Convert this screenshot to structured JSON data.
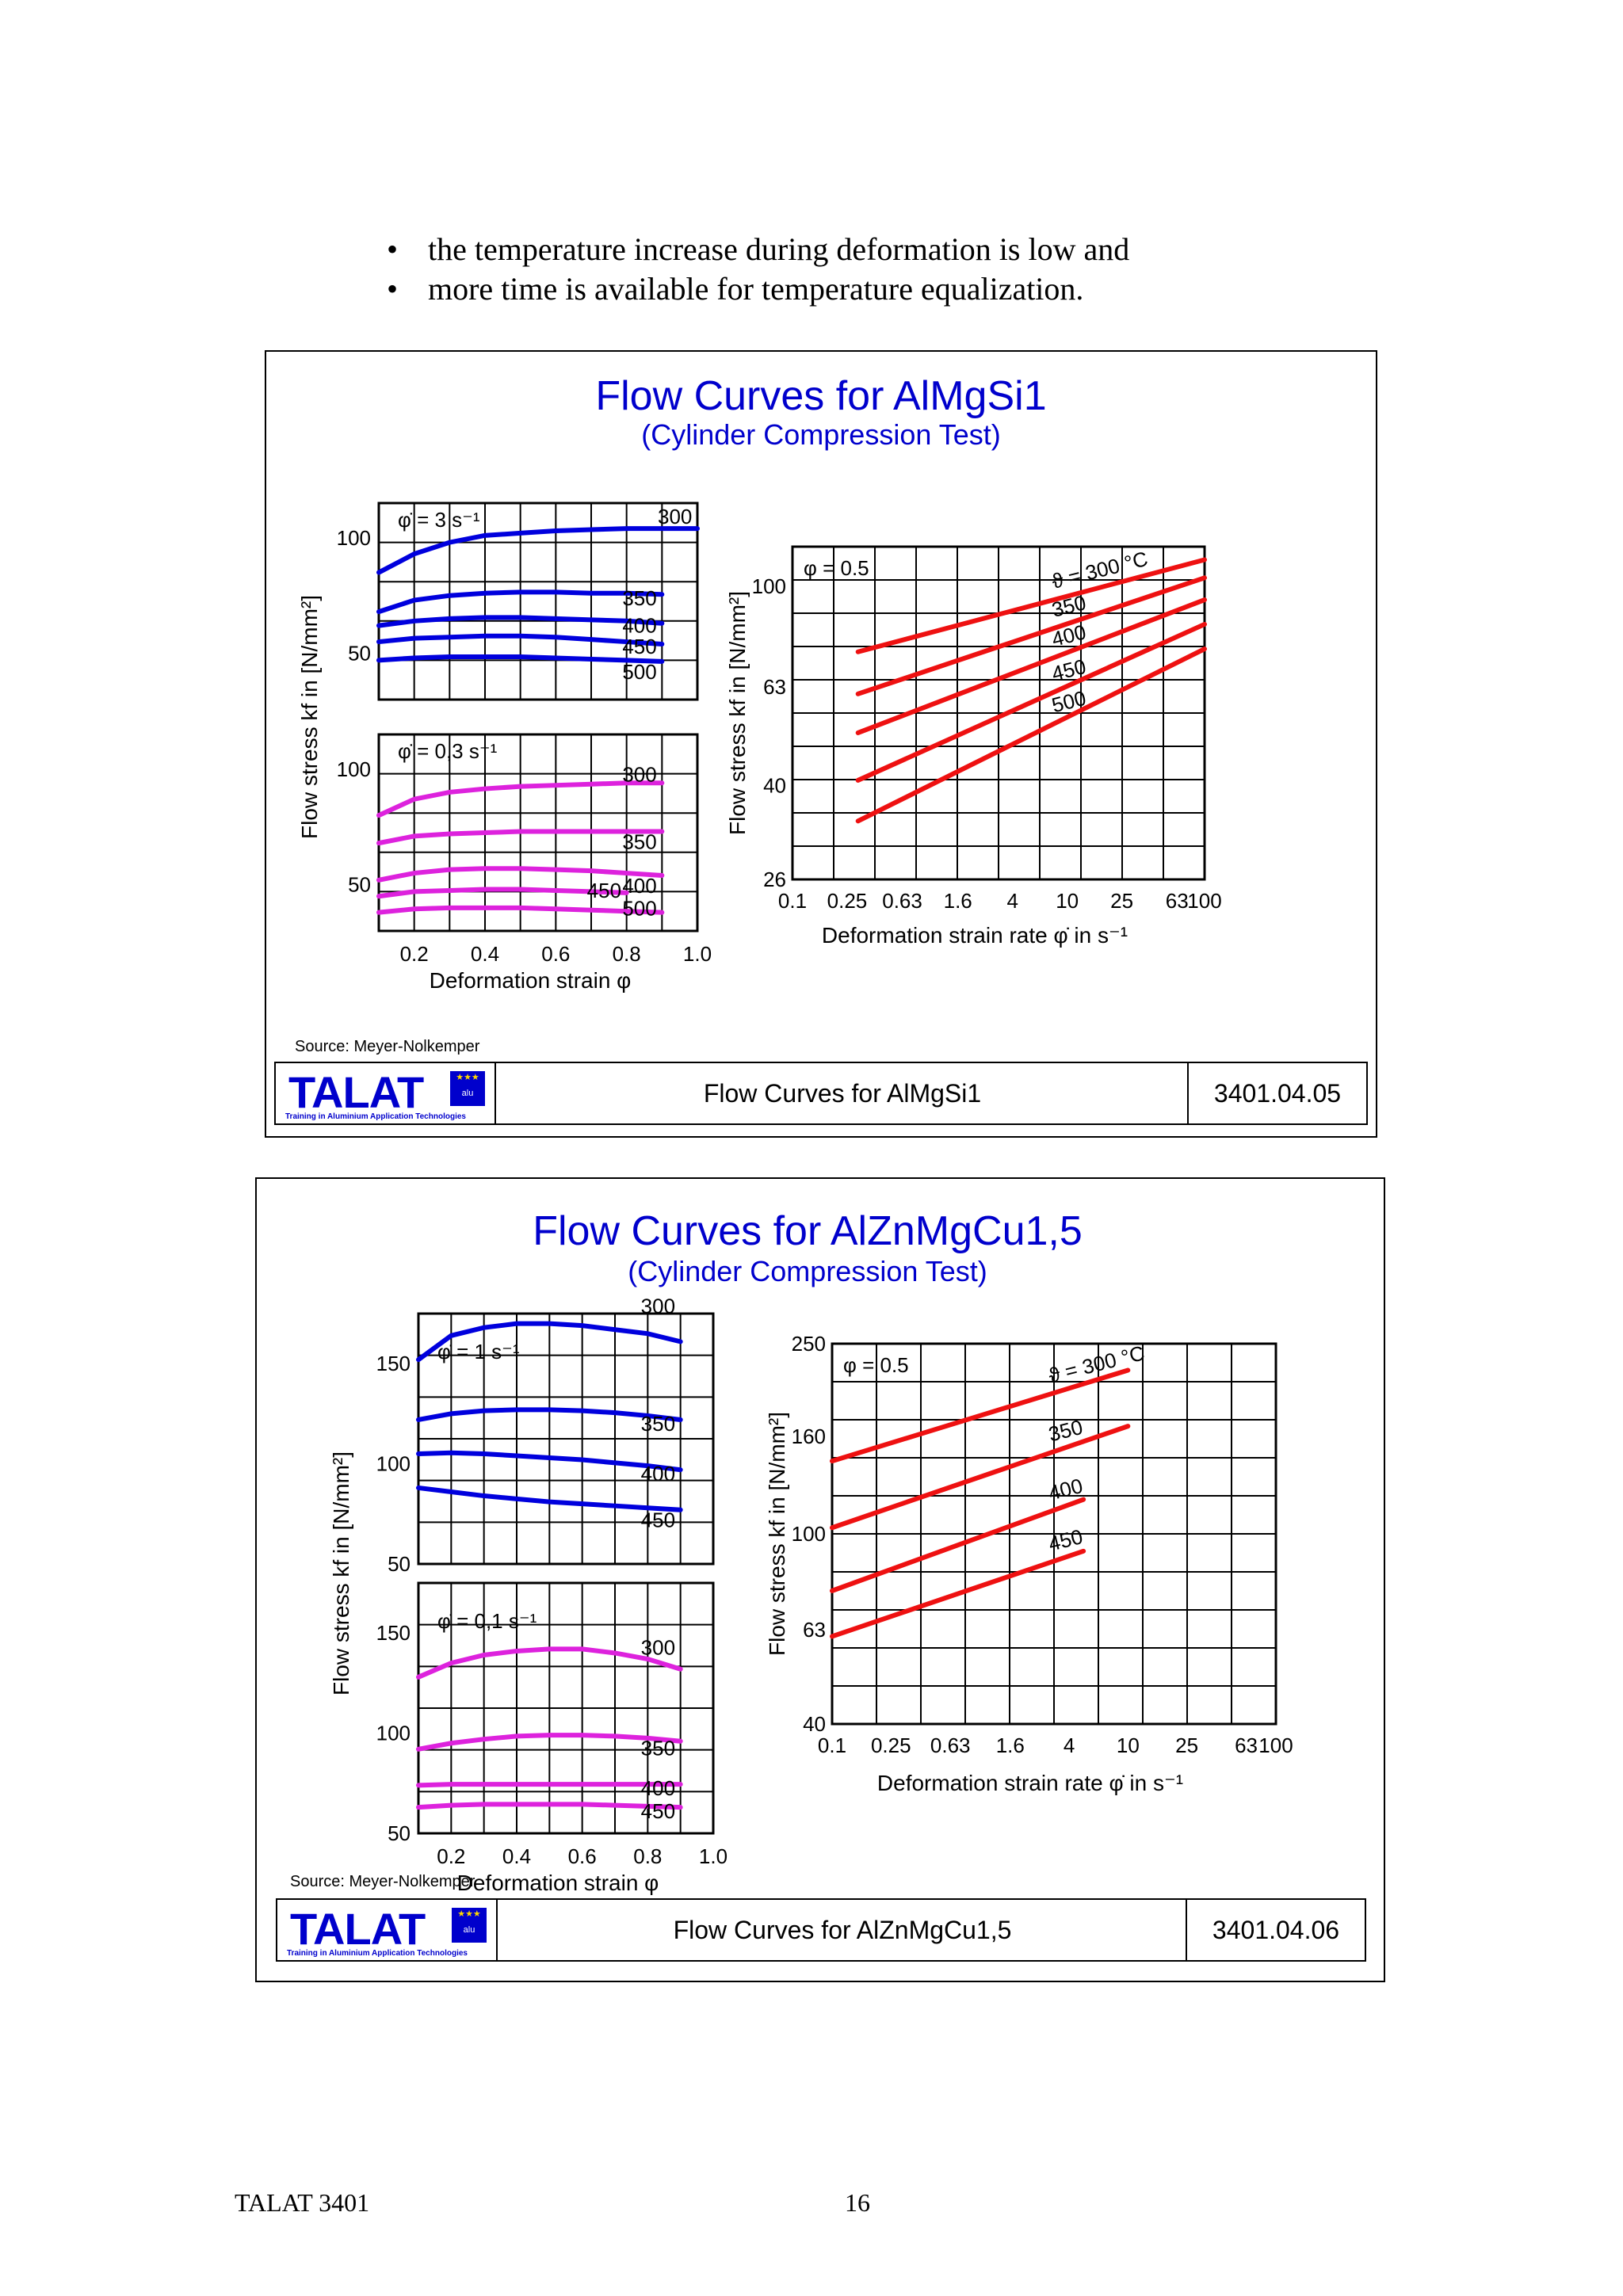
{
  "bullets": [
    "the temperature increase during deformation is low and",
    "more time is available for temperature equalization."
  ],
  "figures": [
    {
      "title": "Flow Curves for AlMgSi1",
      "subtitle": "(Cylinder Compression Test)",
      "source": "Source: Meyer-Nolkemper",
      "footer": {
        "logo": "TALAT",
        "logo_badge": "alu",
        "logo_tagline": "Training in Aluminium Application Technologies",
        "title": "Flow Curves for AlMgSi1",
        "code": "3401.04.05"
      }
    },
    {
      "title": "Flow Curves for AlZnMgCu1,5",
      "subtitle": "(Cylinder Compression Test)",
      "source": "Source: Meyer-Nolkemper",
      "footer": {
        "logo": "TALAT",
        "logo_badge": "alu",
        "logo_tagline": "Training in Aluminium Application Technologies",
        "title": "Flow Curves for AlZnMgCu1,5",
        "code": "3401.04.06"
      }
    }
  ],
  "page_footer": {
    "left": "TALAT 3401",
    "page": "16"
  },
  "chart_data": [
    {
      "id": "f1-strain",
      "type": "line",
      "figure": 1,
      "xlabel": "Deformation strain φ",
      "ylabel": "Flow stress kf in [N/mm²]",
      "xlim": [
        0.1,
        1.0
      ],
      "x_ticks": [
        "0.2",
        "0.4",
        "0.6",
        "0.8",
        "1.0"
      ],
      "grid": true,
      "panels": [
        {
          "label": "φ̇ = 3 s⁻¹",
          "color": "#0000dd",
          "ylim": [
            30,
            115
          ],
          "y_ticks": [
            "100",
            "50"
          ],
          "series": [
            {
              "name": "300",
              "x": [
                0.1,
                0.2,
                0.3,
                0.4,
                0.5,
                0.6,
                0.7,
                0.8,
                0.9,
                1.0
              ],
              "y": [
                85,
                93,
                98,
                101,
                102,
                103,
                103.5,
                104,
                104,
                104
              ]
            },
            {
              "name": "350",
              "x": [
                0.1,
                0.2,
                0.3,
                0.4,
                0.5,
                0.6,
                0.7,
                0.8,
                0.9
              ],
              "y": [
                68,
                73,
                75,
                76,
                76.5,
                76.5,
                76,
                76,
                75.5
              ]
            },
            {
              "name": "400",
              "x": [
                0.1,
                0.2,
                0.3,
                0.4,
                0.5,
                0.6,
                0.7,
                0.8,
                0.9
              ],
              "y": [
                62,
                64,
                65,
                65.5,
                65.5,
                65,
                64.5,
                64,
                63
              ]
            },
            {
              "name": "450",
              "x": [
                0.1,
                0.2,
                0.3,
                0.4,
                0.5,
                0.6,
                0.7,
                0.8,
                0.9
              ],
              "y": [
                55,
                56.5,
                57,
                57.5,
                57.5,
                57,
                56,
                55,
                54
              ]
            },
            {
              "name": "500",
              "x": [
                0.1,
                0.2,
                0.3,
                0.4,
                0.5,
                0.6,
                0.7,
                0.8,
                0.9
              ],
              "y": [
                47,
                48,
                48.5,
                48.5,
                48.5,
                48,
                47.5,
                47,
                46.5
              ]
            }
          ]
        },
        {
          "label": "φ̇ = 0,3 s⁻¹",
          "color": "#dd22dd",
          "ylim": [
            30,
            115
          ],
          "y_ticks": [
            "100",
            "50"
          ],
          "series": [
            {
              "name": "300",
              "x": [
                0.1,
                0.2,
                0.3,
                0.4,
                0.5,
                0.6,
                0.7,
                0.8,
                0.9
              ],
              "y": [
                80,
                87,
                90,
                91.5,
                92.5,
                93,
                93.5,
                94,
                94
              ]
            },
            {
              "name": "350",
              "x": [
                0.1,
                0.2,
                0.3,
                0.4,
                0.5,
                0.6,
                0.7,
                0.8,
                0.9
              ],
              "y": [
                68,
                71,
                72,
                72.5,
                73,
                73,
                73,
                73,
                73
              ]
            },
            {
              "name": "400",
              "x": [
                0.1,
                0.2,
                0.3,
                0.4,
                0.5,
                0.6,
                0.7,
                0.8,
                0.9
              ],
              "y": [
                52,
                55,
                56.5,
                57,
                57,
                56.5,
                56,
                55,
                54
              ]
            },
            {
              "name": "450",
              "x": [
                0.1,
                0.2,
                0.3,
                0.4,
                0.5,
                0.6,
                0.7,
                0.8
              ],
              "y": [
                45,
                47,
                47.5,
                48,
                48,
                47.5,
                47,
                46.5
              ]
            },
            {
              "name": "500",
              "x": [
                0.1,
                0.2,
                0.3,
                0.4,
                0.5,
                0.6,
                0.7,
                0.8,
                0.9
              ],
              "y": [
                38,
                39.5,
                40,
                40,
                40,
                39.5,
                39,
                38.5,
                38
              ]
            }
          ]
        }
      ]
    },
    {
      "id": "f1-rate",
      "type": "line",
      "figure": 1,
      "xlabel": "Deformation strain rate φ̇ in s⁻¹",
      "ylabel": "Flow stress kf in [N/mm²]",
      "x_scale": "log",
      "y_scale": "log",
      "xlim": [
        0.1,
        100
      ],
      "ylim": [
        26,
        120
      ],
      "x_ticks": [
        "0.1",
        "0.25",
        "0.63",
        "1.6",
        "4",
        "10",
        "25",
        "63",
        "100"
      ],
      "y_ticks": [
        "100",
        "63",
        "40",
        "26"
      ],
      "annotation": "φ = 0.5",
      "temperature_label": "ϑ = 300 °C",
      "grid": true,
      "color": "#ee1111",
      "series": [
        {
          "name": "300",
          "x": [
            0.3,
            100
          ],
          "y": [
            74,
            113
          ]
        },
        {
          "name": "350",
          "x": [
            0.3,
            100
          ],
          "y": [
            61,
            104
          ]
        },
        {
          "name": "400",
          "x": [
            0.3,
            100
          ],
          "y": [
            51,
            94
          ]
        },
        {
          "name": "450",
          "x": [
            0.3,
            100
          ],
          "y": [
            41,
            84
          ]
        },
        {
          "name": "500",
          "x": [
            0.3,
            100
          ],
          "y": [
            34,
            75
          ]
        }
      ]
    },
    {
      "id": "f2-strain",
      "type": "line",
      "figure": 2,
      "xlabel": "Deformation strain φ",
      "ylabel": "Flow stress kf in [N/mm²]",
      "xlim": [
        0.1,
        1.0
      ],
      "x_ticks": [
        "0.2",
        "0.4",
        "0.6",
        "0.8",
        "1.0"
      ],
      "grid": true,
      "panels": [
        {
          "label": "φ̇ = 1 s⁻¹",
          "color": "#0000dd",
          "ylim": [
            50,
            175
          ],
          "y_ticks": [
            "150",
            "100",
            "50"
          ],
          "series": [
            {
              "name": "300",
              "x": [
                0.1,
                0.2,
                0.3,
                0.4,
                0.5,
                0.6,
                0.7,
                0.8,
                0.9
              ],
              "y": [
                152,
                164,
                168,
                170,
                170,
                169,
                167,
                165,
                161
              ]
            },
            {
              "name": "350",
              "x": [
                0.1,
                0.2,
                0.3,
                0.4,
                0.5,
                0.6,
                0.7,
                0.8,
                0.9
              ],
              "y": [
                122,
                125,
                126.5,
                127,
                127,
                126.5,
                125.5,
                124,
                122
              ]
            },
            {
              "name": "400",
              "x": [
                0.1,
                0.2,
                0.3,
                0.4,
                0.5,
                0.6,
                0.7,
                0.8,
                0.9
              ],
              "y": [
                105,
                105.5,
                105,
                104,
                103,
                102,
                100.5,
                99,
                97
              ]
            },
            {
              "name": "450",
              "x": [
                0.1,
                0.2,
                0.3,
                0.4,
                0.5,
                0.6,
                0.7,
                0.8,
                0.9
              ],
              "y": [
                88,
                86,
                84,
                82.5,
                81,
                80,
                79,
                78,
                77
              ]
            }
          ]
        },
        {
          "label": "φ̇ = 0,1 s⁻¹",
          "color": "#dd22dd",
          "ylim": [
            50,
            175
          ],
          "y_ticks": [
            "150",
            "100",
            "50"
          ],
          "series": [
            {
              "name": "300",
              "x": [
                0.1,
                0.2,
                0.3,
                0.4,
                0.5,
                0.6,
                0.7,
                0.8,
                0.9
              ],
              "y": [
                128,
                135,
                139,
                141,
                142,
                142,
                140,
                137,
                132
              ]
            },
            {
              "name": "350",
              "x": [
                0.1,
                0.2,
                0.3,
                0.4,
                0.5,
                0.6,
                0.7,
                0.8,
                0.9
              ],
              "y": [
                92,
                95,
                97,
                98.5,
                99,
                99,
                98.5,
                97.5,
                96
              ]
            },
            {
              "name": "400",
              "x": [
                0.1,
                0.2,
                0.3,
                0.4,
                0.5,
                0.6,
                0.7,
                0.8,
                0.9
              ],
              "y": [
                74,
                74.5,
                74.5,
                74.5,
                74.5,
                74.5,
                74.5,
                74.5,
                74.5
              ]
            },
            {
              "name": "450",
              "x": [
                0.1,
                0.2,
                0.3,
                0.4,
                0.5,
                0.6,
                0.7,
                0.8,
                0.9
              ],
              "y": [
                63,
                64,
                64.5,
                64.5,
                64.5,
                64.5,
                64,
                63.5,
                63
              ]
            }
          ]
        }
      ]
    },
    {
      "id": "f2-rate",
      "type": "line",
      "figure": 2,
      "xlabel": "Deformation strain rate φ̇ in s⁻¹",
      "ylabel": "Flow stress kf in [N/mm²]",
      "x_scale": "log",
      "y_scale": "log",
      "xlim": [
        0.1,
        100
      ],
      "ylim": [
        40,
        250
      ],
      "x_ticks": [
        "0.1",
        "0.25",
        "0.63",
        "1.6",
        "4",
        "10",
        "25",
        "63",
        "100"
      ],
      "y_ticks": [
        "250",
        "160",
        "100",
        "63",
        "40"
      ],
      "annotation": "φ = 0.5",
      "temperature_label": "ϑ = 300 °C",
      "grid": true,
      "color": "#ee1111",
      "series": [
        {
          "name": "300",
          "x": [
            0.1,
            10
          ],
          "y": [
            142,
            220
          ]
        },
        {
          "name": "350",
          "x": [
            0.1,
            10
          ],
          "y": [
            103,
            168
          ]
        },
        {
          "name": "400",
          "x": [
            0.1,
            5
          ],
          "y": [
            76,
            118
          ]
        },
        {
          "name": "450",
          "x": [
            0.1,
            5
          ],
          "y": [
            61,
            92
          ]
        }
      ]
    }
  ]
}
